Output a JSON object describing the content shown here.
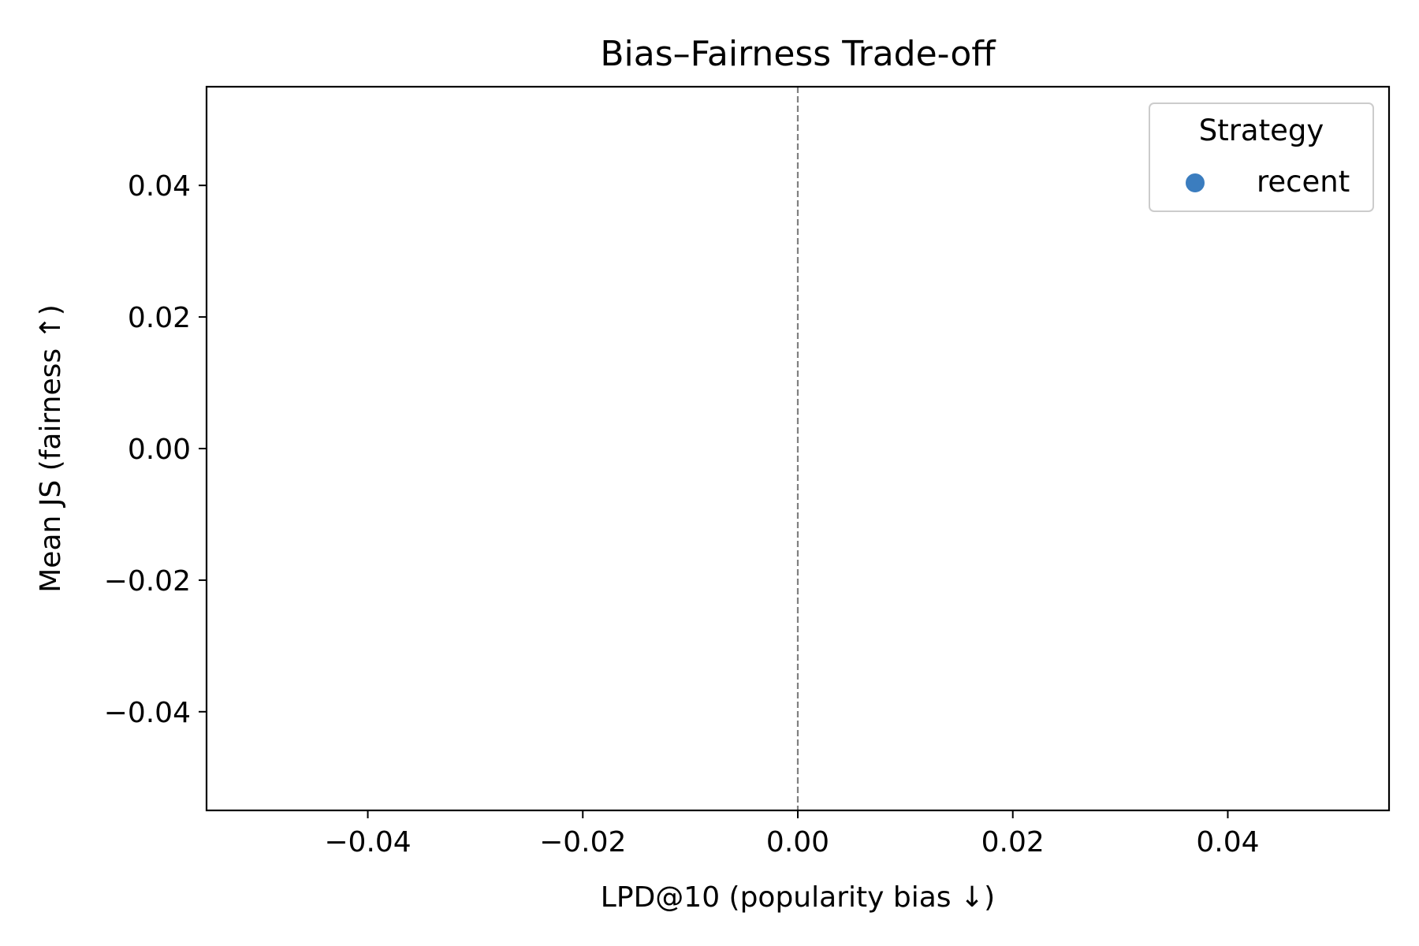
{
  "chart_data": {
    "type": "scatter",
    "title": "Bias–Fairness Trade-off",
    "xlabel": "LPD@10  (popularity bias ↓)",
    "ylabel": "Mean JS  (fairness ↑)",
    "xlim": [
      -0.055,
      0.055
    ],
    "ylim": [
      -0.055,
      0.055
    ],
    "x_ticks": [
      -0.04,
      -0.02,
      0.0,
      0.02,
      0.04
    ],
    "x_tick_labels": [
      "−0.04",
      "−0.02",
      "0.00",
      "0.02",
      "0.04"
    ],
    "y_ticks": [
      -0.04,
      -0.02,
      0.0,
      0.02,
      0.04
    ],
    "y_tick_labels": [
      "−0.04",
      "−0.02",
      "0.00",
      "0.02",
      "0.04"
    ],
    "grid": false,
    "reference_lines": [
      {
        "orientation": "vertical",
        "x": 0.0,
        "style": "dashed",
        "color": "#808080"
      }
    ],
    "legend": {
      "title": "Strategy",
      "placement": "top-right",
      "entries": [
        {
          "label": "recent",
          "marker": "circle",
          "color": "#3b7dbf"
        }
      ]
    },
    "series": [
      {
        "name": "recent",
        "color": "#3b7dbf",
        "points": []
      }
    ]
  }
}
